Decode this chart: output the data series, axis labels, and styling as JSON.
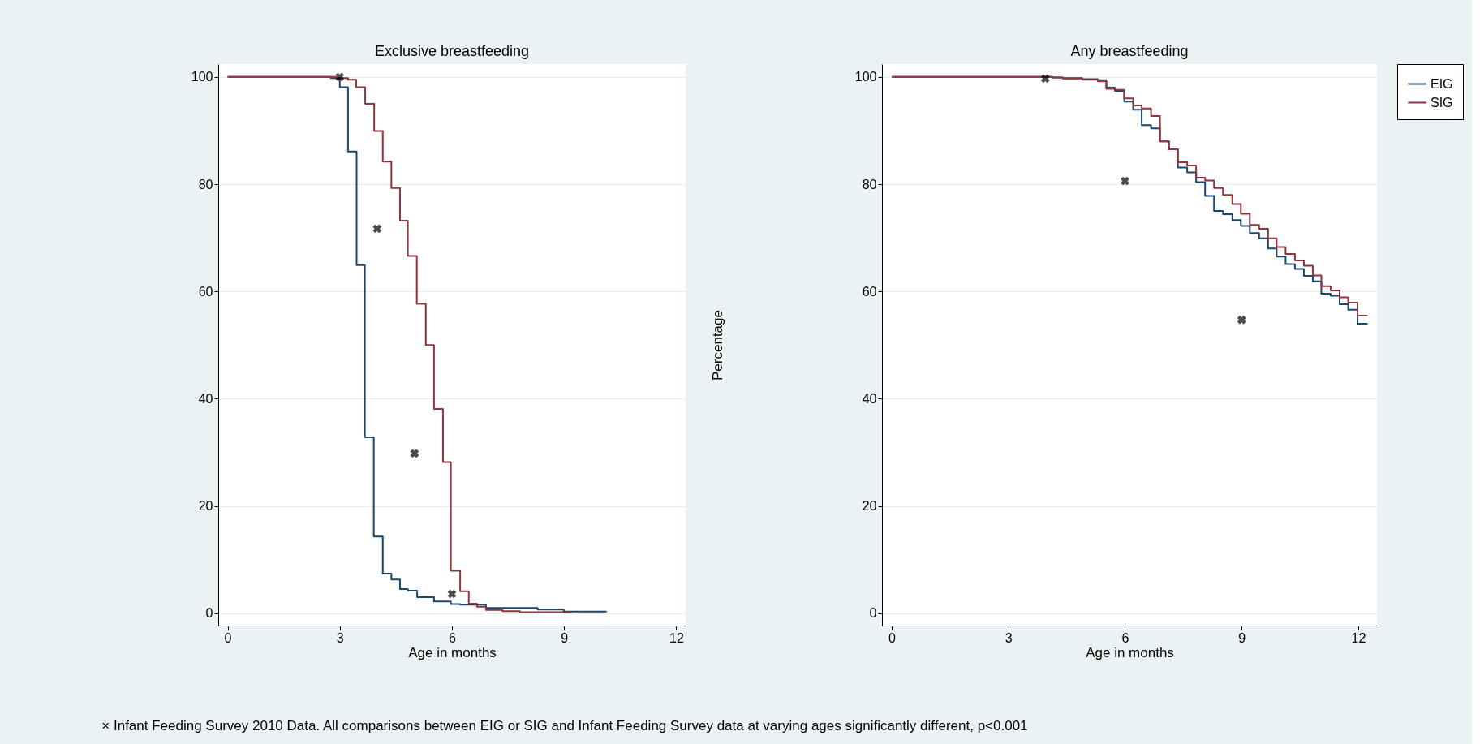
{
  "chart_data": [
    {
      "type": "step",
      "title": "Exclusive breastfeeding",
      "xlabel": "Age in months",
      "xlim": [
        -0.25,
        12.25
      ],
      "xticks": [
        0,
        3,
        6,
        9,
        12
      ],
      "ylim": [
        -2.3,
        102.4
      ],
      "yticks": [
        0,
        20,
        40,
        60,
        80,
        100
      ],
      "grid": "y",
      "legend": "right",
      "annotations": [
        "× Infant Feeding Survey 2010 Data. All comparisons between EIG or SIG and Infant Feeding Survey data at varying ages significantly different, p<0.001"
      ],
      "series": [
        {
          "name": "EIG",
          "color": "#1a476f",
          "x": [
            0,
            2.76,
            3.0,
            3.22,
            3.45,
            3.67,
            3.91,
            4.15,
            4.38,
            4.61,
            4.82,
            5.07,
            5.52,
            5.97,
            6.22,
            6.91,
            8.29,
            8.99,
            10.14
          ],
          "values": [
            100,
            99.8,
            98.1,
            86.1,
            64.9,
            32.8,
            14.3,
            7.4,
            6.3,
            4.5,
            4.2,
            3.0,
            2.2,
            1.7,
            1.6,
            1.0,
            0.7,
            0.3,
            0.3
          ]
        },
        {
          "name": "SIG",
          "color": "#90353b",
          "x": [
            0,
            2.9,
            3.22,
            3.44,
            3.68,
            3.92,
            4.15,
            4.38,
            4.61,
            4.82,
            5.06,
            5.3,
            5.52,
            5.76,
            5.97,
            6.22,
            6.45,
            6.67,
            6.91,
            7.35,
            7.82,
            9.2
          ],
          "values": [
            100,
            99.8,
            99.5,
            98.1,
            95.0,
            89.9,
            84.2,
            79.3,
            73.2,
            66.6,
            57.7,
            50.0,
            38.1,
            28.2,
            7.9,
            4.1,
            1.8,
            1.2,
            0.6,
            0.4,
            0.2,
            0.2
          ]
        },
        {
          "type": "scatter",
          "color": "#000000",
          "marker": "cross",
          "x": [
            3,
            4,
            5,
            6
          ],
          "values": [
            100,
            71.7,
            29.8,
            3.6
          ]
        }
      ]
    },
    {
      "type": "step",
      "title": "Any breastfeeding",
      "xlabel": "Age in months",
      "ylabel": "Percentage",
      "xlim": [
        -0.25,
        12.48
      ],
      "xticks": [
        0,
        3,
        6,
        9,
        12
      ],
      "ylim": [
        -2.3,
        102.4
      ],
      "yticks": [
        0,
        20,
        40,
        60,
        80,
        100
      ],
      "grid": "y",
      "legend": "right",
      "series": [
        {
          "name": "EIG",
          "color": "#1a476f",
          "x": [
            0,
            4.13,
            4.4,
            4.9,
            5.3,
            5.52,
            5.74,
            5.98,
            6.21,
            6.43,
            6.67,
            6.9,
            7.13,
            7.36,
            7.6,
            7.83,
            8.06,
            8.29,
            8.52,
            8.76,
            8.98,
            9.21,
            9.45,
            9.68,
            9.9,
            10.13,
            10.37,
            10.6,
            10.83,
            11.05,
            11.29,
            11.52,
            11.74,
            11.98,
            12.24
          ],
          "values": [
            100,
            99.9,
            99.8,
            99.6,
            99.4,
            98.0,
            97.4,
            95.4,
            93.9,
            91.0,
            90.4,
            88.0,
            86.5,
            83.1,
            82.2,
            80.4,
            77.8,
            75.0,
            74.4,
            73.3,
            72.2,
            70.9,
            69.9,
            68.0,
            66.5,
            65.1,
            64.2,
            62.9,
            61.9,
            59.6,
            59.2,
            57.6,
            56.6,
            54.0,
            54.0
          ]
        },
        {
          "name": "SIG",
          "color": "#90353b",
          "x": [
            0,
            4.13,
            4.4,
            4.9,
            5.3,
            5.52,
            5.74,
            5.98,
            6.21,
            6.43,
            6.67,
            6.9,
            7.13,
            7.36,
            7.6,
            7.83,
            8.06,
            8.29,
            8.52,
            8.76,
            8.98,
            9.21,
            9.45,
            9.68,
            9.9,
            10.13,
            10.37,
            10.6,
            10.83,
            11.05,
            11.29,
            11.52,
            11.74,
            11.98,
            12.24
          ],
          "values": [
            100,
            99.9,
            99.7,
            99.5,
            99.2,
            97.8,
            97.6,
            96.0,
            94.7,
            94.1,
            92.7,
            88.0,
            86.5,
            84.1,
            83.5,
            81.2,
            80.7,
            79.3,
            78.0,
            76.3,
            74.5,
            72.4,
            71.7,
            69.9,
            68.3,
            67.0,
            65.8,
            64.8,
            63.0,
            61.0,
            60.2,
            58.9,
            57.9,
            55.5,
            55.5
          ]
        },
        {
          "type": "scatter",
          "color": "#000000",
          "marker": "cross",
          "x": [
            3.95,
            6,
            9
          ],
          "values": [
            99.7,
            80.6,
            54.7
          ]
        }
      ]
    }
  ]
}
